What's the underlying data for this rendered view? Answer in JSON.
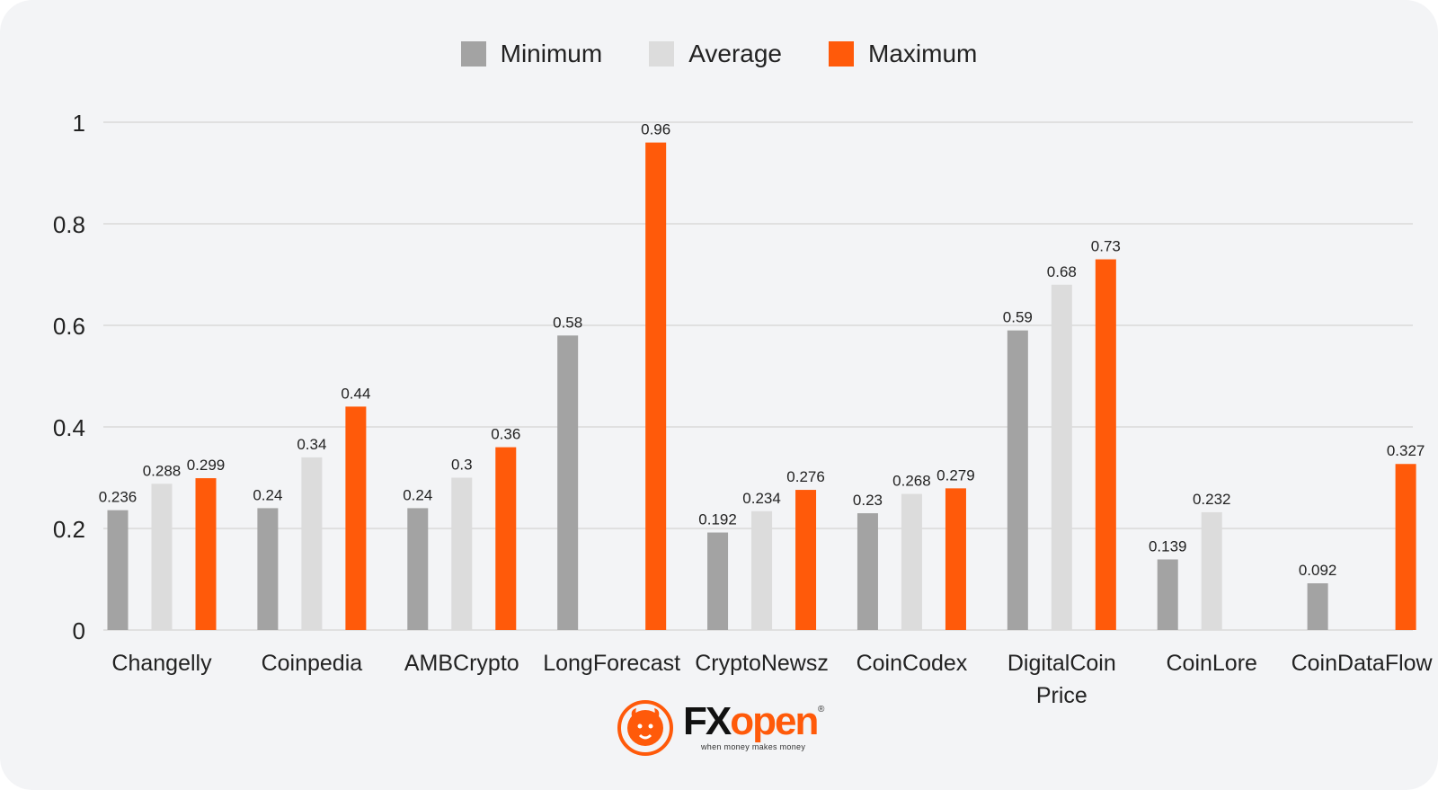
{
  "colors": {
    "minimum": "#a3a3a3",
    "average": "#dcdcdc",
    "maximum": "#ff5a0a",
    "grid": "#d9d9d9",
    "axis_text": "#222222",
    "background": "#f3f4f6"
  },
  "legend": [
    {
      "label": "Minimum",
      "color": "#a3a3a3"
    },
    {
      "label": "Average",
      "color": "#dcdcdc"
    },
    {
      "label": "Maximum",
      "color": "#ff5a0a"
    }
  ],
  "chart_data": {
    "type": "bar",
    "title": "",
    "xlabel": "",
    "ylabel": "",
    "ylim": [
      0,
      1
    ],
    "yticks": [
      "0",
      "0.2",
      "0.4",
      "0.6",
      "0.8",
      "1"
    ],
    "categories": [
      [
        "Changelly"
      ],
      [
        "Coinpedia"
      ],
      [
        "AMBCrypto"
      ],
      [
        "LongForecast"
      ],
      [
        "CryptoNewsz"
      ],
      [
        "CoinCodex"
      ],
      [
        "DigitalCoin",
        "Price"
      ],
      [
        "CoinLore"
      ],
      [
        "CoinDataFlow"
      ]
    ],
    "series": [
      {
        "name": "Minimum",
        "values": [
          0.236,
          0.24,
          0.24,
          0.58,
          0.192,
          0.23,
          0.59,
          0.139,
          0.092
        ],
        "labels": [
          "0.236",
          "0.24",
          "0.24",
          "0.58",
          "0.192",
          "0.23",
          "0.59",
          "0.139",
          "0.092"
        ]
      },
      {
        "name": "Average",
        "values": [
          0.288,
          0.34,
          0.3,
          null,
          0.234,
          0.268,
          0.68,
          0.232,
          null
        ],
        "labels": [
          "0.288",
          "0.34",
          "0.3",
          null,
          "0.234",
          "0.268",
          "0.68",
          "0.232",
          null
        ]
      },
      {
        "name": "Maximum",
        "values": [
          0.299,
          0.44,
          0.36,
          0.96,
          0.276,
          0.279,
          0.73,
          null,
          0.327
        ],
        "labels": [
          "0.299",
          "0.44",
          "0.36",
          "0.96",
          "0.276",
          "0.279",
          "0.73",
          null,
          "0.327"
        ]
      }
    ],
    "legend_position": "top-center",
    "grid": true
  },
  "logo": {
    "brand_fx": "FX",
    "brand_open": "open",
    "registered": "®",
    "tagline": "when money makes money"
  }
}
